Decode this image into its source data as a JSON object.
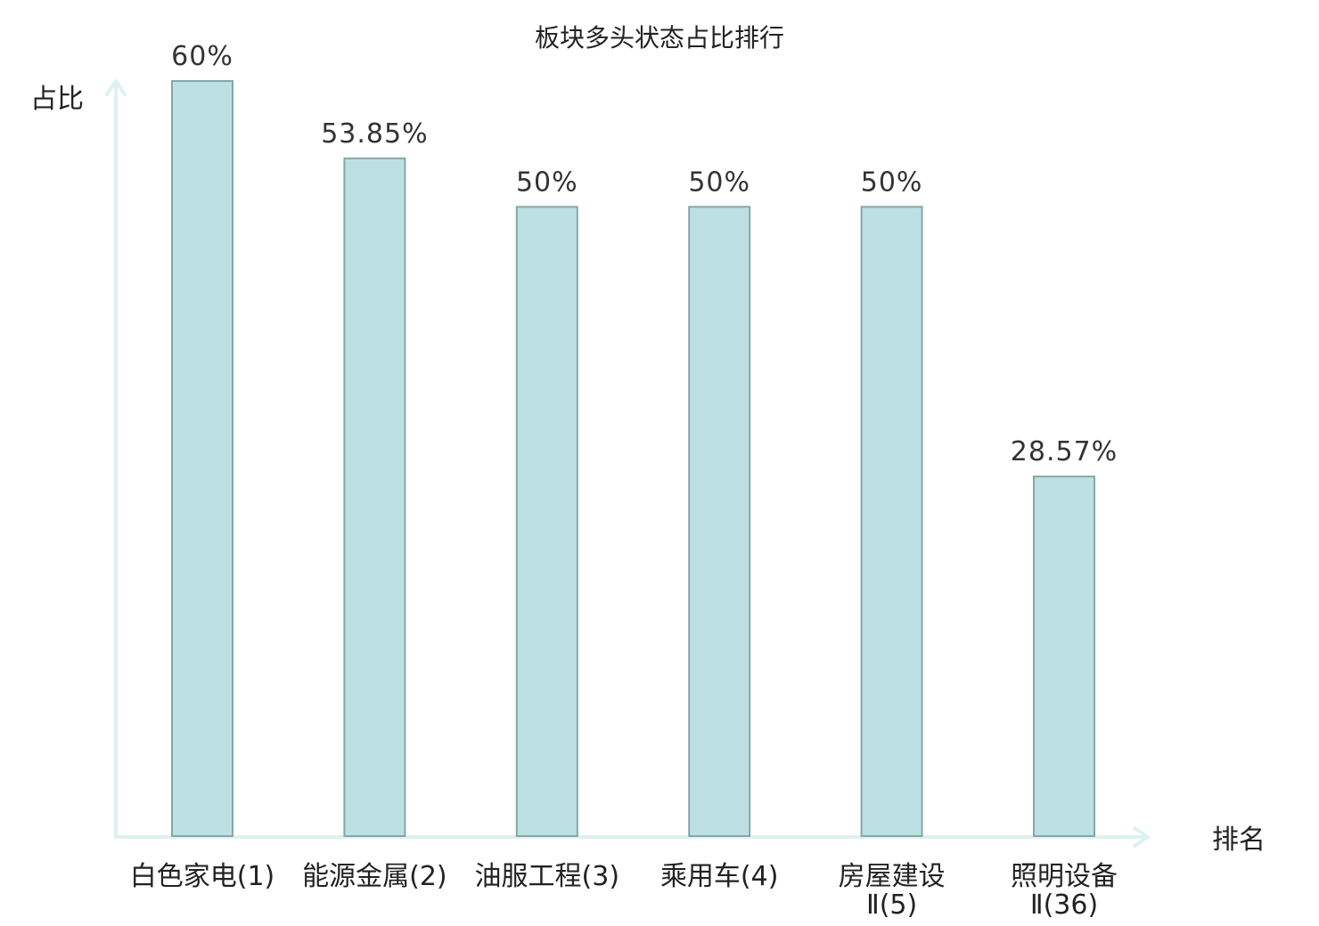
{
  "chart_data": {
    "type": "bar",
    "title": "板块多头状态占比排行",
    "xlabel": "排名",
    "ylabel": "占比",
    "ylim": [
      0,
      60
    ],
    "grid": false,
    "legend": "none",
    "categories": [
      [
        "白色家电(1)"
      ],
      [
        "能源金属(2)"
      ],
      [
        "油服工程(3)"
      ],
      [
        "乘用车(4)"
      ],
      [
        "房屋建设",
        "Ⅱ(5)"
      ],
      [
        "照明设备",
        "Ⅱ(36)"
      ]
    ],
    "values": [
      60,
      53.85,
      50,
      50,
      50,
      28.57
    ],
    "value_labels": [
      "60%",
      "53.85%",
      "50%",
      "50%",
      "50%",
      "28.57%"
    ],
    "highlight_index": 5
  },
  "colors": {
    "bar_fill": "#bde1e3",
    "bar_stroke": "#85a6a8",
    "axis": "#dff1ef",
    "text": "#222222",
    "highlight": "#e60000"
  }
}
